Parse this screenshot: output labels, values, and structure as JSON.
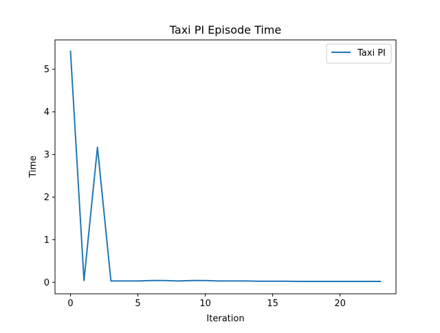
{
  "chart_data": {
    "type": "line",
    "title": "Taxi PI Episode Time",
    "xlabel": "Iteration",
    "ylabel": "Time",
    "xlim": [
      -1.15,
      24.15
    ],
    "ylim": [
      -0.27,
      5.69
    ],
    "xticks": [
      0,
      5,
      10,
      15,
      20
    ],
    "yticks": [
      0,
      1,
      2,
      3,
      4,
      5
    ],
    "grid": false,
    "legend_position": "upper right",
    "series": [
      {
        "name": "Taxi PI",
        "color": "#1f77b4",
        "x": [
          0,
          1,
          2,
          3,
          4,
          5,
          6,
          7,
          8,
          9,
          10,
          11,
          12,
          13,
          14,
          15,
          16,
          17,
          18,
          19,
          20,
          21,
          22,
          23
        ],
        "y": [
          5.42,
          0.04,
          3.17,
          0.03,
          0.03,
          0.03,
          0.04,
          0.04,
          0.03,
          0.04,
          0.04,
          0.03,
          0.03,
          0.03,
          0.025,
          0.025,
          0.025,
          0.02,
          0.02,
          0.02,
          0.02,
          0.02,
          0.02,
          0.02
        ]
      }
    ]
  }
}
